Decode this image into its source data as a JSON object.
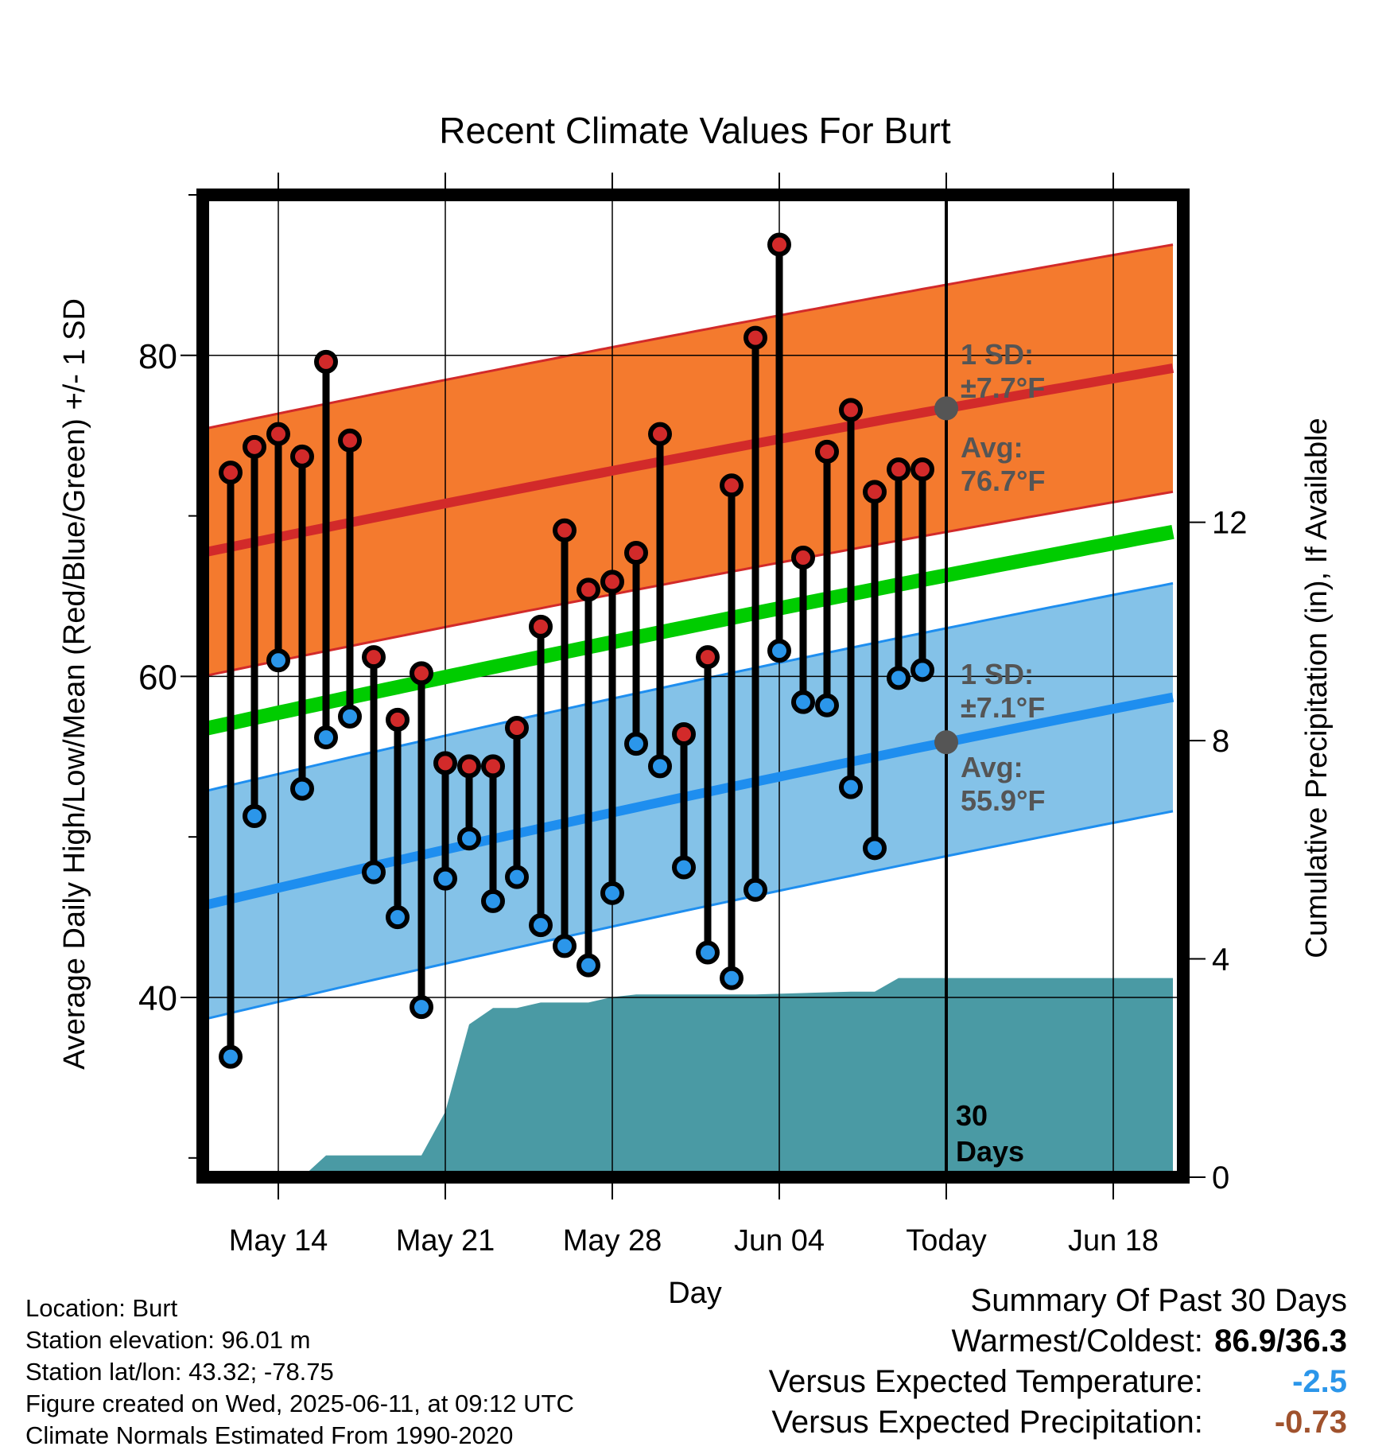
{
  "chart_data": {
    "type": "line",
    "title": "Recent Climate Values For Burt",
    "xlabel": "Day",
    "ylabel_left": "Average Daily High/Low/Mean (Red/Blue/Green) +/- 1 SD",
    "ylabel_right": "Cumulative Precipitation (in), If Available",
    "x_tick_labels": [
      "May 14",
      "May 21",
      "May 28",
      "Jun 04",
      "Today",
      "Jun 18"
    ],
    "y_left_ticks": [
      40,
      60,
      80
    ],
    "y_right_ticks": [
      0,
      4,
      8,
      12
    ],
    "y_left_range": [
      28.8,
      90
    ],
    "y_right_range": [
      0,
      18
    ],
    "x_range_days": [
      -31.5,
      9.5
    ],
    "normals": {
      "high_mean": {
        "start": 67.6,
        "today": 76.7,
        "end": 79.2
      },
      "high_sd": 7.7,
      "low_mean": {
        "start": 45.6,
        "today": 55.9,
        "end": 58.7
      },
      "low_sd": 7.1,
      "mean": {
        "start": 56.6,
        "today": 66.3,
        "end": 69.0
      }
    },
    "daily": [
      {
        "day": -30,
        "high": 72.7,
        "low": 36.3
      },
      {
        "day": -29,
        "high": 74.3,
        "low": 51.3
      },
      {
        "day": -28,
        "high": 75.1,
        "low": 61.0
      },
      {
        "day": -27,
        "high": 73.7,
        "low": 53.0
      },
      {
        "day": -26,
        "high": 79.6,
        "low": 56.2
      },
      {
        "day": -25,
        "high": 74.7,
        "low": 57.5
      },
      {
        "day": -24,
        "high": 61.2,
        "low": 47.8
      },
      {
        "day": -23,
        "high": 57.3,
        "low": 45.0
      },
      {
        "day": -22,
        "high": 60.2,
        "low": 39.4
      },
      {
        "day": -21,
        "high": 54.6,
        "low": 47.4
      },
      {
        "day": -20,
        "high": 54.4,
        "low": 49.9
      },
      {
        "day": -19,
        "high": 54.4,
        "low": 46.0
      },
      {
        "day": -18,
        "high": 56.8,
        "low": 47.5
      },
      {
        "day": -17,
        "high": 63.1,
        "low": 44.5
      },
      {
        "day": -16,
        "high": 69.1,
        "low": 43.2
      },
      {
        "day": -15,
        "high": 65.4,
        "low": 42.0
      },
      {
        "day": -14,
        "high": 65.9,
        "low": 46.5
      },
      {
        "day": -13,
        "high": 67.7,
        "low": 55.8
      },
      {
        "day": -12,
        "high": 75.1,
        "low": 54.4
      },
      {
        "day": -11,
        "high": 56.4,
        "low": 48.1
      },
      {
        "day": -10,
        "high": 61.2,
        "low": 42.8
      },
      {
        "day": -9,
        "high": 71.9,
        "low": 41.2
      },
      {
        "day": -8,
        "high": 81.1,
        "low": 46.7
      },
      {
        "day": -7,
        "high": 86.9,
        "low": 61.6
      },
      {
        "day": -6,
        "high": 67.4,
        "low": 58.4
      },
      {
        "day": -5,
        "high": 74.0,
        "low": 58.2
      },
      {
        "day": -4,
        "high": 76.6,
        "low": 53.1
      },
      {
        "day": -3,
        "high": 71.5,
        "low": 49.3
      },
      {
        "day": -2,
        "high": 72.9,
        "low": 59.9
      },
      {
        "day": -1,
        "high": 72.9,
        "low": 60.4
      }
    ],
    "cumulative_precipitation": [
      {
        "day": -31.5,
        "value": 0.0
      },
      {
        "day": -27,
        "value": 0.0
      },
      {
        "day": -26,
        "value": 0.4
      },
      {
        "day": -22,
        "value": 0.4
      },
      {
        "day": -21,
        "value": 1.2
      },
      {
        "day": -20,
        "value": 2.8
      },
      {
        "day": -19,
        "value": 3.1
      },
      {
        "day": -18,
        "value": 3.1
      },
      {
        "day": -17,
        "value": 3.2
      },
      {
        "day": -15,
        "value": 3.2
      },
      {
        "day": -14,
        "value": 3.3
      },
      {
        "day": -13,
        "value": 3.35
      },
      {
        "day": -8,
        "value": 3.35
      },
      {
        "day": -4,
        "value": 3.4
      },
      {
        "day": -3,
        "value": 3.4
      },
      {
        "day": -2,
        "value": 3.65
      },
      {
        "day": 9.5,
        "value": 3.65
      }
    ],
    "annotations": {
      "high_sd_label": "1 SD:",
      "high_sd_value": "±7.7°F",
      "high_avg_label": "Avg:",
      "high_avg_value": "76.7°F",
      "low_sd_label": "1 SD:",
      "low_sd_value": "±7.1°F",
      "low_avg_label": "Avg:",
      "low_avg_value": "55.9°F",
      "days_label_1": "30",
      "days_label_2": "Days"
    },
    "colors": {
      "high_band": "#f47a2e",
      "high_line": "#d22a2a",
      "low_band": "#84c2e8",
      "low_line": "#1e8eef",
      "mean_line": "#00cc00",
      "precip_fill": "#4a9aa4",
      "high_marker": "#d22a2a",
      "low_marker": "#2b96ea",
      "annotation_text": "#555555"
    }
  },
  "meta": {
    "location": "Location: Burt",
    "elevation": "Station elevation: 96.01 m",
    "latlon": "Station lat/lon: 43.32; -78.75",
    "created": "Figure created on Wed, 2025-06-11, at 09:12 UTC",
    "normals": "Climate Normals Estimated From 1990-2020"
  },
  "summary": {
    "title": "Summary Of Past 30 Days",
    "warmest_label": "Warmest/Coldest:",
    "warmest_value": "86.9/36.3",
    "temp_label": "Versus Expected Temperature:",
    "temp_value": "-2.5",
    "precip_label": "Versus Expected Precipitation:",
    "precip_value": "-0.73"
  }
}
